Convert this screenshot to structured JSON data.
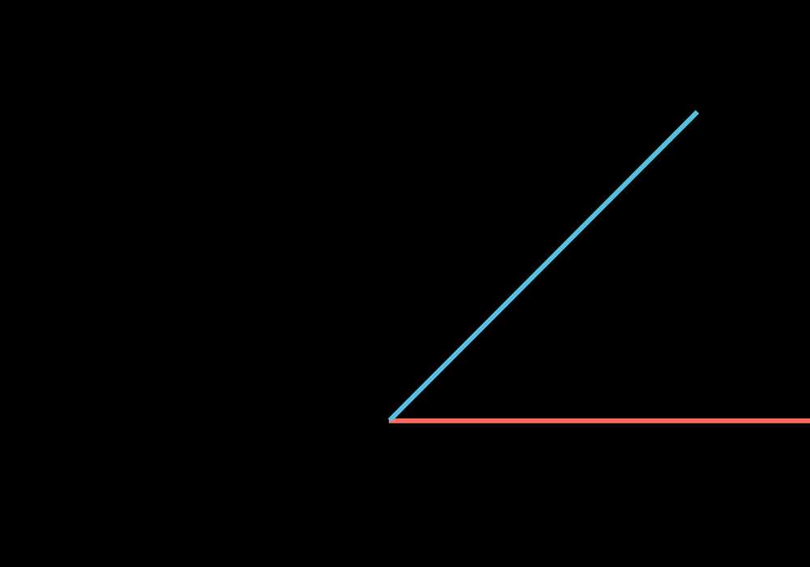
{
  "diagram": {
    "background_color": "#000000",
    "rays": [
      {
        "name": "horizontal-ray",
        "color": "#ff6b5f",
        "angle_degrees": 0
      },
      {
        "name": "angled-ray",
        "color": "#56c1de",
        "angle_degrees": 45
      }
    ]
  }
}
